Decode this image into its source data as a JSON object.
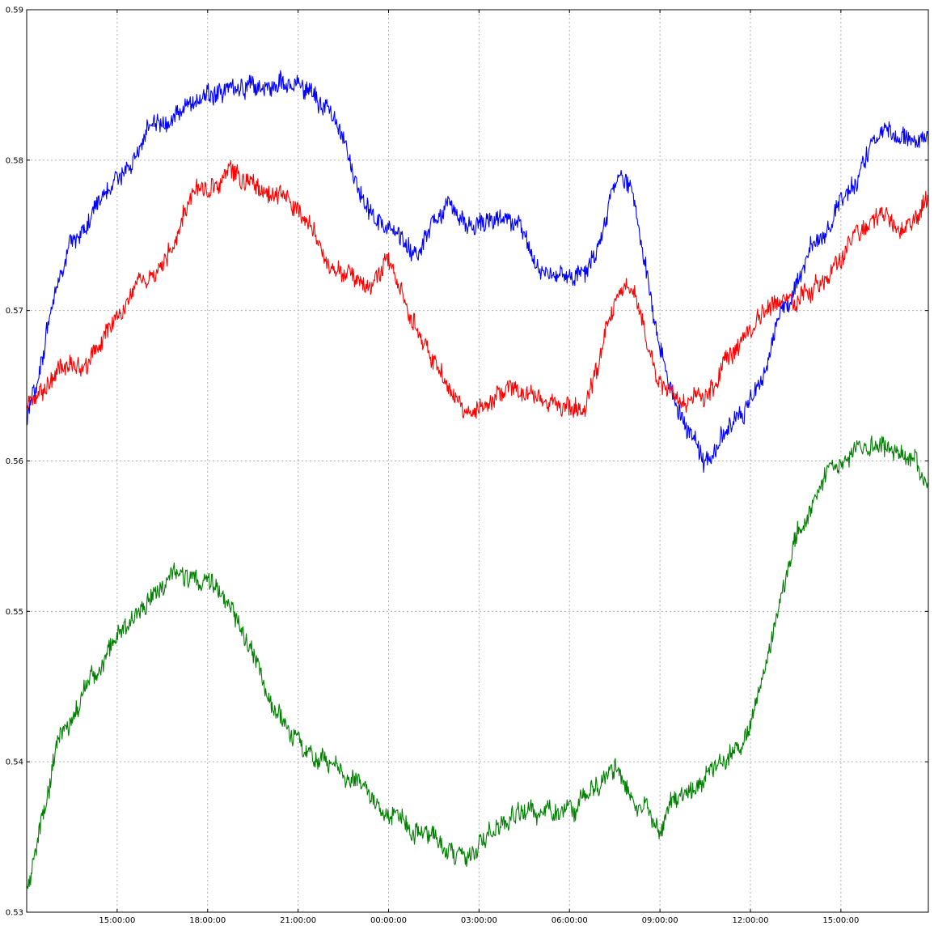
{
  "chart_data": {
    "type": "line",
    "title": "",
    "xlabel": "",
    "ylabel": "",
    "grid": true,
    "x_start": "12:00:00",
    "x_end": "17:55:00",
    "xlim_hours": [
      12.0,
      41.9
    ],
    "ylim": [
      0.53,
      0.59
    ],
    "x_ticks": [
      {
        "hour": 15,
        "label": "15:00:00"
      },
      {
        "hour": 18,
        "label": "18:00:00"
      },
      {
        "hour": 21,
        "label": "21:00:00"
      },
      {
        "hour": 24,
        "label": "00:00:00"
      },
      {
        "hour": 27,
        "label": "03:00:00"
      },
      {
        "hour": 30,
        "label": "06:00:00"
      },
      {
        "hour": 33,
        "label": "09:00:00"
      },
      {
        "hour": 36,
        "label": "12:00:00"
      },
      {
        "hour": 39,
        "label": "15:00:00"
      }
    ],
    "y_ticks": [
      {
        "value": 0.53,
        "label": "0.53"
      },
      {
        "value": 0.54,
        "label": "0.54"
      },
      {
        "value": 0.55,
        "label": "0.55"
      },
      {
        "value": 0.56,
        "label": "0.56"
      },
      {
        "value": 0.57,
        "label": "0.57"
      },
      {
        "value": 0.58,
        "label": "0.58"
      },
      {
        "value": 0.59,
        "label": "0.59"
      }
    ],
    "x_hours": [
      12.0,
      12.5,
      13.0,
      13.5,
      14.0,
      14.5,
      15.0,
      15.5,
      16.0,
      16.5,
      17.0,
      17.5,
      18.0,
      18.5,
      19.0,
      19.5,
      20.0,
      20.5,
      21.0,
      21.5,
      22.0,
      22.5,
      23.0,
      23.5,
      24.0,
      24.5,
      25.0,
      25.5,
      26.0,
      26.5,
      27.0,
      27.5,
      28.0,
      28.5,
      29.0,
      29.5,
      30.0,
      30.5,
      31.0,
      31.5,
      32.0,
      32.5,
      33.0,
      33.5,
      34.0,
      34.5,
      35.0,
      35.5,
      36.0,
      36.5,
      37.0,
      37.5,
      38.0,
      38.5,
      39.0,
      39.5,
      40.0,
      40.5,
      41.0,
      41.5,
      41.9
    ],
    "series": [
      {
        "color": "#0000ff",
        "values": [
          0.5628,
          0.5668,
          0.5718,
          0.5745,
          0.5758,
          0.5773,
          0.5788,
          0.5803,
          0.5817,
          0.5828,
          0.5832,
          0.5837,
          0.5842,
          0.5845,
          0.5847,
          0.5848,
          0.585,
          0.5853,
          0.585,
          0.5843,
          0.5833,
          0.5812,
          0.578,
          0.5762,
          0.5753,
          0.5742,
          0.5738,
          0.5762,
          0.5768,
          0.576,
          0.5757,
          0.576,
          0.5765,
          0.575,
          0.5725,
          0.5722,
          0.5722,
          0.5722,
          0.574,
          0.5785,
          0.5788,
          0.5735,
          0.567,
          0.5638,
          0.5622,
          0.5598,
          0.5615,
          0.5625,
          0.564,
          0.5662,
          0.5698,
          0.5715,
          0.574,
          0.5755,
          0.577,
          0.5785,
          0.581,
          0.5818,
          0.5815,
          0.5813,
          0.5815
        ]
      },
      {
        "color": "#ff0000",
        "values": [
          0.5638,
          0.5648,
          0.566,
          0.5665,
          0.5663,
          0.568,
          0.5698,
          0.571,
          0.5718,
          0.573,
          0.5753,
          0.5782,
          0.5783,
          0.5787,
          0.5792,
          0.5787,
          0.5778,
          0.5775,
          0.5768,
          0.575,
          0.573,
          0.5723,
          0.5722,
          0.5722,
          0.5732,
          0.571,
          0.5683,
          0.5668,
          0.565,
          0.5633,
          0.5633,
          0.5643,
          0.5648,
          0.5645,
          0.564,
          0.5637,
          0.5635,
          0.5635,
          0.5665,
          0.5708,
          0.5718,
          0.5685,
          0.565,
          0.5645,
          0.5635,
          0.564,
          0.566,
          0.567,
          0.5688,
          0.57,
          0.5708,
          0.5703,
          0.5715,
          0.5723,
          0.5735,
          0.5748,
          0.5758,
          0.576,
          0.5753,
          0.5765,
          0.5778
        ]
      },
      {
        "color": "#008000",
        "values": [
          0.5315,
          0.536,
          0.541,
          0.5428,
          0.5448,
          0.5468,
          0.5485,
          0.5495,
          0.5505,
          0.5515,
          0.5527,
          0.5523,
          0.552,
          0.551,
          0.5495,
          0.547,
          0.5443,
          0.5425,
          0.541,
          0.5403,
          0.5398,
          0.5393,
          0.5385,
          0.5375,
          0.5368,
          0.536,
          0.5355,
          0.535,
          0.534,
          0.5338,
          0.5345,
          0.5355,
          0.5363,
          0.537,
          0.5368,
          0.5368,
          0.537,
          0.5375,
          0.5388,
          0.5398,
          0.5375,
          0.537,
          0.5355,
          0.5378,
          0.538,
          0.539,
          0.54,
          0.5405,
          0.5425,
          0.5465,
          0.551,
          0.5545,
          0.557,
          0.5588,
          0.5598,
          0.5605,
          0.561,
          0.561,
          0.5605,
          0.5595,
          0.558
        ]
      }
    ]
  }
}
